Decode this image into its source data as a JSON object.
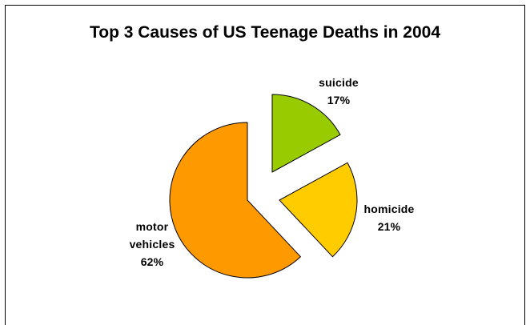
{
  "chart_data": {
    "type": "pie",
    "title": "Top 3 Causes of US Teenage Deaths in 2004",
    "slices": [
      {
        "name": "suicide",
        "value": 17,
        "label": "17%",
        "color": "#99cc00"
      },
      {
        "name": "homicide",
        "value": 21,
        "label": "21%",
        "color": "#ffcc00"
      },
      {
        "name": "motor vehicles",
        "value": 62,
        "label": "62%",
        "color": "#ff9900"
      }
    ],
    "exploded": true,
    "legend": "none"
  }
}
